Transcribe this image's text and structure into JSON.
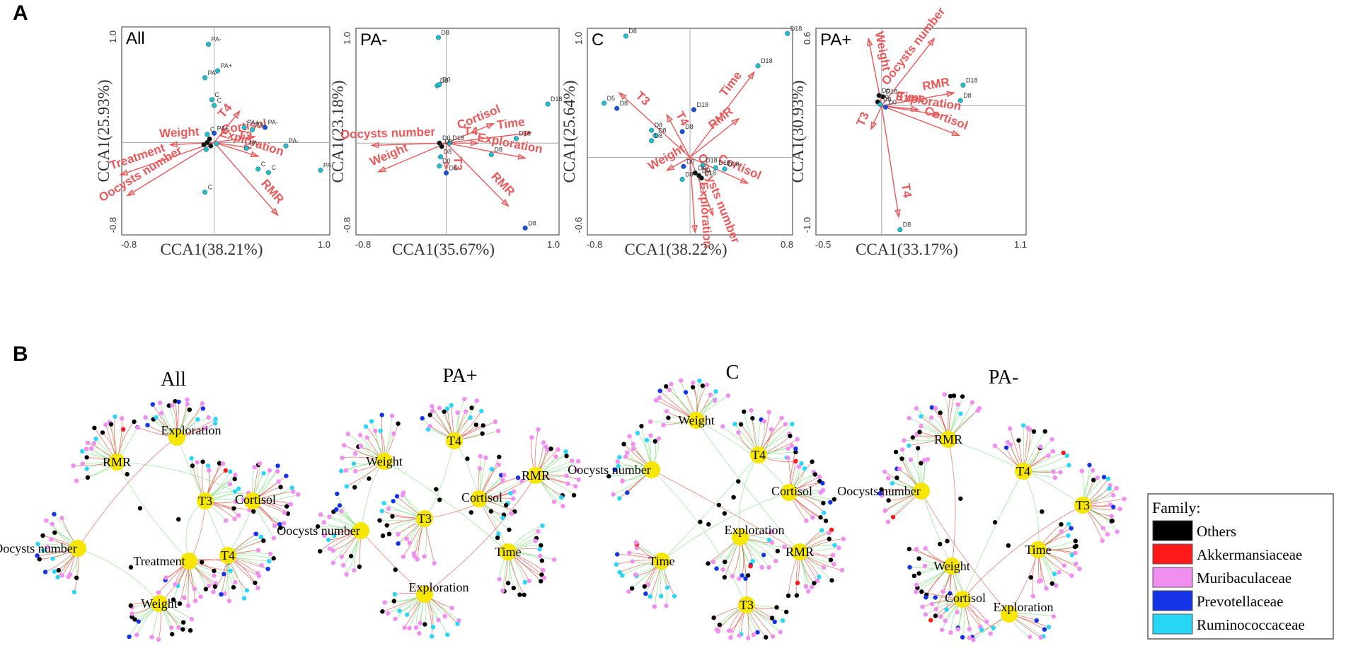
{
  "figure": {
    "panel_a_letter": "A",
    "panel_b_letter": "B"
  },
  "chart_data": [
    {
      "type": "scatter",
      "title": "All",
      "xlabel": "CCA1(38.21%)",
      "ylabel": "CCA1(25.93%)",
      "xlim": [
        -0.8,
        1.0
      ],
      "ylim": [
        -0.8,
        1.0
      ],
      "xticks": [
        "-0.8",
        "1.0"
      ],
      "yticks": [
        "1.0",
        "-0.8"
      ],
      "arrows": [
        {
          "name": "Treatment",
          "x": -0.81,
          "y": -0.28
        },
        {
          "name": "Oocysts number",
          "x": -0.75,
          "y": -0.46
        },
        {
          "name": "Weight",
          "x": -0.38,
          "y": -0.02
        },
        {
          "name": "T4",
          "x": 0.22,
          "y": 0.27
        },
        {
          "name": "Cortisol",
          "x": 0.35,
          "y": 0.05
        },
        {
          "name": "T3",
          "x": 0.32,
          "y": -0.05
        },
        {
          "name": "Exploration",
          "x": 0.38,
          "y": -0.12
        },
        {
          "name": "RMR",
          "x": 0.55,
          "y": -0.63
        }
      ],
      "points": [
        {
          "label": "PA-",
          "x": -0.05,
          "y": 0.85,
          "color": "#22bfd0"
        },
        {
          "label": "PA+",
          "x": 0.03,
          "y": 0.62,
          "color": "#22bfd0"
        },
        {
          "label": "PA-",
          "x": -0.08,
          "y": 0.56,
          "color": "#22bfd0"
        },
        {
          "label": "C",
          "x": -0.02,
          "y": 0.37,
          "color": "#22bfd0"
        },
        {
          "label": "C",
          "x": 0.0,
          "y": 0.32,
          "color": "#22bfd0"
        },
        {
          "label": "PA+",
          "x": 0.26,
          "y": 0.13,
          "color": "#22bfd0"
        },
        {
          "label": "PA-",
          "x": 0.44,
          "y": 0.13,
          "color": "#1a4fd6"
        },
        {
          "label": "PA-",
          "x": 0.33,
          "y": 0.11,
          "color": "#22bfd0"
        },
        {
          "label": "PA+",
          "x": 0.0,
          "y": 0.08,
          "color": "#1a4fd6"
        },
        {
          "label": "C",
          "x": -0.06,
          "y": 0.07,
          "color": "#22bfd0"
        },
        {
          "label": "PA-",
          "x": 0.28,
          "y": -0.05,
          "color": "#22bfd0"
        },
        {
          "label": "PA-",
          "x": 0.62,
          "y": -0.03,
          "color": "#22bfd0"
        },
        {
          "label": "C",
          "x": 0.38,
          "y": -0.23,
          "color": "#22bfd0"
        },
        {
          "label": "C",
          "x": 0.47,
          "y": -0.26,
          "color": "#22bfd0"
        },
        {
          "label": "PA-",
          "x": 0.92,
          "y": -0.24,
          "color": "#22bfd0"
        },
        {
          "label": "C",
          "x": -0.08,
          "y": -0.43,
          "color": "#22bfd0"
        },
        {
          "label": "",
          "x": -0.06,
          "y": 0.0,
          "color": "#111111"
        },
        {
          "label": "",
          "x": -0.03,
          "y": -0.03,
          "color": "#111111"
        },
        {
          "label": "",
          "x": -0.09,
          "y": -0.02,
          "color": "#111111"
        },
        {
          "label": "",
          "x": -0.04,
          "y": 0.03,
          "color": "#111111"
        },
        {
          "label": "",
          "x": -0.07,
          "y": -0.06,
          "color": "#22bfd0"
        },
        {
          "label": "",
          "x": 0.02,
          "y": -0.01,
          "color": "#22bfd0"
        }
      ]
    },
    {
      "type": "scatter",
      "title": "PA-",
      "xlabel": "CCA1(35.67%)",
      "ylabel": "CCA1(23.18%)",
      "xlim": [
        -0.8,
        1.0
      ],
      "ylim": [
        -0.8,
        1.0
      ],
      "xticks": [
        "-0.8",
        "1.0"
      ],
      "yticks": [
        "1.0",
        "-0.8"
      ],
      "arrows": [
        {
          "name": "Oocysts number",
          "x": -0.66,
          "y": -0.02
        },
        {
          "name": "Weight",
          "x": -0.6,
          "y": -0.25
        },
        {
          "name": "Cortisol",
          "x": 0.42,
          "y": 0.17
        },
        {
          "name": "Time",
          "x": 0.75,
          "y": 0.09
        },
        {
          "name": "T4",
          "x": 0.28,
          "y": 0.0
        },
        {
          "name": "Exploration",
          "x": 0.7,
          "y": -0.13
        },
        {
          "name": "T3",
          "x": 0.0,
          "y": -0.23
        },
        {
          "name": "RMR",
          "x": 0.55,
          "y": -0.55
        }
      ],
      "points": [
        {
          "label": "D8",
          "x": -0.07,
          "y": 0.92,
          "color": "#22bfd0"
        },
        {
          "label": "D8",
          "x": -0.08,
          "y": 0.5,
          "color": "#22bfd0"
        },
        {
          "label": "D0",
          "x": -0.06,
          "y": 0.51,
          "color": "#22bfd0"
        },
        {
          "label": "D18",
          "x": 0.9,
          "y": 0.34,
          "color": "#22bfd0"
        },
        {
          "label": "D18",
          "x": 0.62,
          "y": 0.04,
          "color": "#22bfd0"
        },
        {
          "label": "D18",
          "x": 0.03,
          "y": 0.0,
          "color": "#22bfd0"
        },
        {
          "label": "D0",
          "x": -0.06,
          "y": 0.0,
          "color": "#111111"
        },
        {
          "label": "D0",
          "x": -0.04,
          "y": -0.03,
          "color": "#111111"
        },
        {
          "label": "D8",
          "x": 0.4,
          "y": -0.1,
          "color": "#22bfd0"
        },
        {
          "label": "D8",
          "x": -0.05,
          "y": -0.12,
          "color": "#22bfd0"
        },
        {
          "label": "D0",
          "x": -0.06,
          "y": -0.2,
          "color": "#22bfd0"
        },
        {
          "label": "D8",
          "x": 0.0,
          "y": -0.26,
          "color": "#1a4fd6"
        },
        {
          "label": "D8",
          "x": 0.7,
          "y": -0.74,
          "color": "#1a4fd6"
        }
      ]
    },
    {
      "type": "scatter",
      "title": "C",
      "xlabel": "CCA1(38.22%)",
      "ylabel": "CCA1(25.64%)",
      "xlim": [
        -0.8,
        0.8
      ],
      "ylim": [
        -0.6,
        1.0
      ],
      "xticks": [
        "-0.8",
        "0.8"
      ],
      "yticks": [
        "1.0",
        "-0.6"
      ],
      "arrows": [
        {
          "name": "T3",
          "x": -0.55,
          "y": 0.5
        },
        {
          "name": "T4",
          "x": -0.18,
          "y": 0.33
        },
        {
          "name": "Time",
          "x": 0.5,
          "y": 0.66
        },
        {
          "name": "RMR",
          "x": 0.38,
          "y": 0.3
        },
        {
          "name": "Weight",
          "x": -0.18,
          "y": -0.1
        },
        {
          "name": "Cortisol",
          "x": 0.45,
          "y": -0.2
        },
        {
          "name": "Oocysts number",
          "x": 0.18,
          "y": -0.45
        },
        {
          "name": "Exploration",
          "x": 0.04,
          "y": -0.58
        }
      ],
      "points": [
        {
          "label": "D8",
          "x": -0.5,
          "y": 0.94,
          "color": "#22bfd0"
        },
        {
          "label": "D18",
          "x": 0.76,
          "y": 0.96,
          "color": "#22bfd0"
        },
        {
          "label": "D18",
          "x": 0.53,
          "y": 0.71,
          "color": "#22bfd0"
        },
        {
          "label": "D5",
          "x": -0.67,
          "y": 0.42,
          "color": "#22bfd0"
        },
        {
          "label": "D8",
          "x": -0.57,
          "y": 0.38,
          "color": "#1a4fd6"
        },
        {
          "label": "D18",
          "x": 0.03,
          "y": 0.37,
          "color": "#1a4fd6"
        },
        {
          "label": "D8",
          "x": -0.06,
          "y": 0.2,
          "color": "#1a4fd6"
        },
        {
          "label": "D8",
          "x": -0.3,
          "y": 0.21,
          "color": "#22bfd0"
        },
        {
          "label": "D8",
          "x": -0.27,
          "y": 0.17,
          "color": "#22bfd0"
        },
        {
          "label": "D8",
          "x": -0.3,
          "y": 0.13,
          "color": "#22bfd0"
        },
        {
          "label": "D0",
          "x": -0.05,
          "y": -0.07,
          "color": "#1a4fd6"
        },
        {
          "label": "D18",
          "x": 0.1,
          "y": -0.06,
          "color": "#22bfd0"
        },
        {
          "label": "D18",
          "x": 0.2,
          "y": -0.08,
          "color": "#22bfd0"
        },
        {
          "label": "D18",
          "x": 0.27,
          "y": -0.09,
          "color": "#22bfd0"
        },
        {
          "label": "D0",
          "x": 0.04,
          "y": -0.12,
          "color": "#111111"
        },
        {
          "label": "D0",
          "x": 0.07,
          "y": -0.14,
          "color": "#111111"
        },
        {
          "label": "D18",
          "x": 0.09,
          "y": -0.16,
          "color": "#111111"
        },
        {
          "label": "D8",
          "x": -0.06,
          "y": -0.17,
          "color": "#22bfd0"
        }
      ]
    },
    {
      "type": "scatter",
      "title": "PA+",
      "xlabel": "CCA1(33.17%)",
      "ylabel": "CCA1(30.93%)",
      "xlim": [
        -0.5,
        1.1
      ],
      "ylim": [
        -1.0,
        0.6
      ],
      "xticks": [
        "-0.5",
        "1.1"
      ],
      "yticks": [
        "0.6",
        "-1.0"
      ],
      "arrows": [
        {
          "name": "Weight",
          "x": -0.1,
          "y": 0.52
        },
        {
          "name": "Oocysts number",
          "x": 0.4,
          "y": 0.52
        },
        {
          "name": "RMR",
          "x": 0.55,
          "y": 0.1
        },
        {
          "name": "Time",
          "x": 0.28,
          "y": -0.03
        },
        {
          "name": "Exploration",
          "x": 0.44,
          "y": -0.07
        },
        {
          "name": "Cortisol",
          "x": 0.59,
          "y": -0.23
        },
        {
          "name": "T3",
          "x": -0.08,
          "y": -0.18
        },
        {
          "name": "T4",
          "x": 0.13,
          "y": -0.86
        }
      ],
      "points": [
        {
          "label": "D18",
          "x": 0.62,
          "y": 0.16,
          "color": "#22bfd0"
        },
        {
          "label": "D8",
          "x": 0.6,
          "y": 0.04,
          "color": "#22bfd0"
        },
        {
          "label": "D0",
          "x": -0.02,
          "y": 0.08,
          "color": "#111111"
        },
        {
          "label": "D18",
          "x": 0.01,
          "y": 0.07,
          "color": "#111111"
        },
        {
          "label": "D0",
          "x": -0.03,
          "y": 0.03,
          "color": "#111111"
        },
        {
          "label": "D8",
          "x": -0.01,
          "y": 0.01,
          "color": "#22bfd0"
        },
        {
          "label": "D0",
          "x": 0.03,
          "y": -0.01,
          "color": "#1a4fd6"
        },
        {
          "label": "D8",
          "x": 0.14,
          "y": -0.96,
          "color": "#22bfd0"
        }
      ]
    }
  ],
  "networks": [
    {
      "title": "All",
      "hubs": [
        "RMR",
        "Exploration",
        "T3",
        "Cortisol",
        "Oocysts number",
        "Treatment",
        "T4",
        "Weight"
      ]
    },
    {
      "title": "PA+",
      "hubs": [
        "T4",
        "Weight",
        "RMR",
        "Cortisol",
        "Oocysts number",
        "T3",
        "Time",
        "Exploration"
      ]
    },
    {
      "title": "C",
      "hubs": [
        "Weight",
        "T4",
        "Oocysts number",
        "Cortisol",
        "Exploration",
        "RMR",
        "Time",
        "T3"
      ]
    },
    {
      "title": "PA-",
      "hubs": [
        "RMR",
        "T4",
        "Oocysts number",
        "T3",
        "Time",
        "Weight",
        "Cortisol",
        "Exploration"
      ]
    }
  ],
  "legend": {
    "title": "Family:",
    "items": [
      {
        "label": "Others",
        "color": "#000000"
      },
      {
        "label": "Akkermansiaceae",
        "color": "#ff1a1a"
      },
      {
        "label": "Muribaculaceae",
        "color": "#f08ff0"
      },
      {
        "label": "Prevotellaceae",
        "color": "#1432e6"
      },
      {
        "label": "Ruminococcaceae",
        "color": "#2ad6f5"
      }
    ]
  },
  "colors": {
    "arrow": "#e8595a",
    "hub": "#f6e600",
    "edge_positive": "#e24a3b",
    "edge_negative": "#7be07b"
  }
}
